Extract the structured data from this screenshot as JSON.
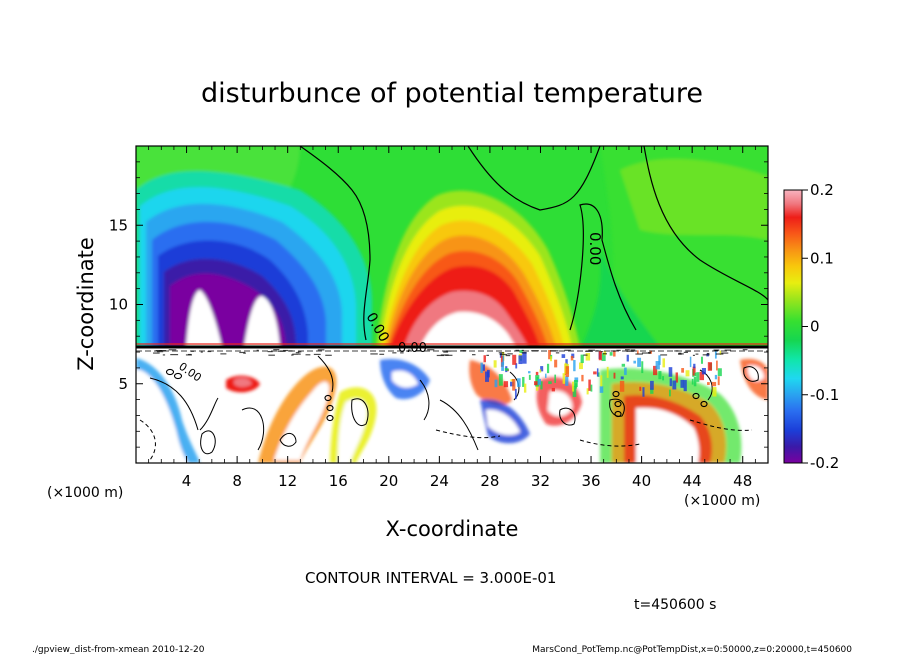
{
  "chart_data": {
    "type": "heatmap",
    "title": "disturbunce of potential temperature",
    "xlabel": "X-coordinate",
    "ylabel": "Z-coordinate",
    "x_unit": "(×1000 m)",
    "y_unit": "(×1000 m)",
    "xlim": [
      0,
      50
    ],
    "ylim": [
      0,
      20
    ],
    "x_ticks": [
      4,
      8,
      12,
      16,
      20,
      24,
      28,
      32,
      36,
      40,
      44,
      48
    ],
    "y_ticks": [
      5,
      10,
      15
    ],
    "colorbar": {
      "ticks": [
        "0.2",
        "0.1",
        "0",
        "-0.1",
        "-0.2"
      ],
      "tick_values": [
        0.2,
        0.1,
        0,
        -0.1,
        -0.2
      ],
      "range": [
        -0.2,
        0.2
      ]
    },
    "contour_interval_text": "CONTOUR INTERVAL = 3.000E-01",
    "time_text": "t=450600 s",
    "contour_labels": [
      "0.00",
      "0.00",
      "0.00",
      "0.00"
    ],
    "field_features": [
      {
        "kind": "min",
        "x": 5,
        "z": 10.5,
        "value": -0.2
      },
      {
        "kind": "min",
        "x": 10,
        "z": 10.3,
        "value": -0.2
      },
      {
        "kind": "max",
        "x": 26,
        "z": 10.2,
        "value": 0.2
      },
      {
        "kind": "weak",
        "x": 42,
        "z": 13,
        "value": 0.0
      }
    ],
    "interface_height": 7.3
  },
  "footer": {
    "left": "./gpview_dist-from-xmean  2010-12-20",
    "right": "MarsCond_PotTemp.nc@PotTempDist,x=0:50000,z=0:20000,t=450600"
  },
  "colors": {
    "colormap": [
      "#7a00a0",
      "#3a1aa8",
      "#1c3ed8",
      "#2a6ef0",
      "#2aa2f0",
      "#1fd8f0",
      "#10e6a8",
      "#16d650",
      "#37e030",
      "#9be51c",
      "#e8ee10",
      "#f8c80c",
      "#f89414",
      "#f85818",
      "#ee1e18",
      "#f07880",
      "#f8b4c0"
    ]
  }
}
